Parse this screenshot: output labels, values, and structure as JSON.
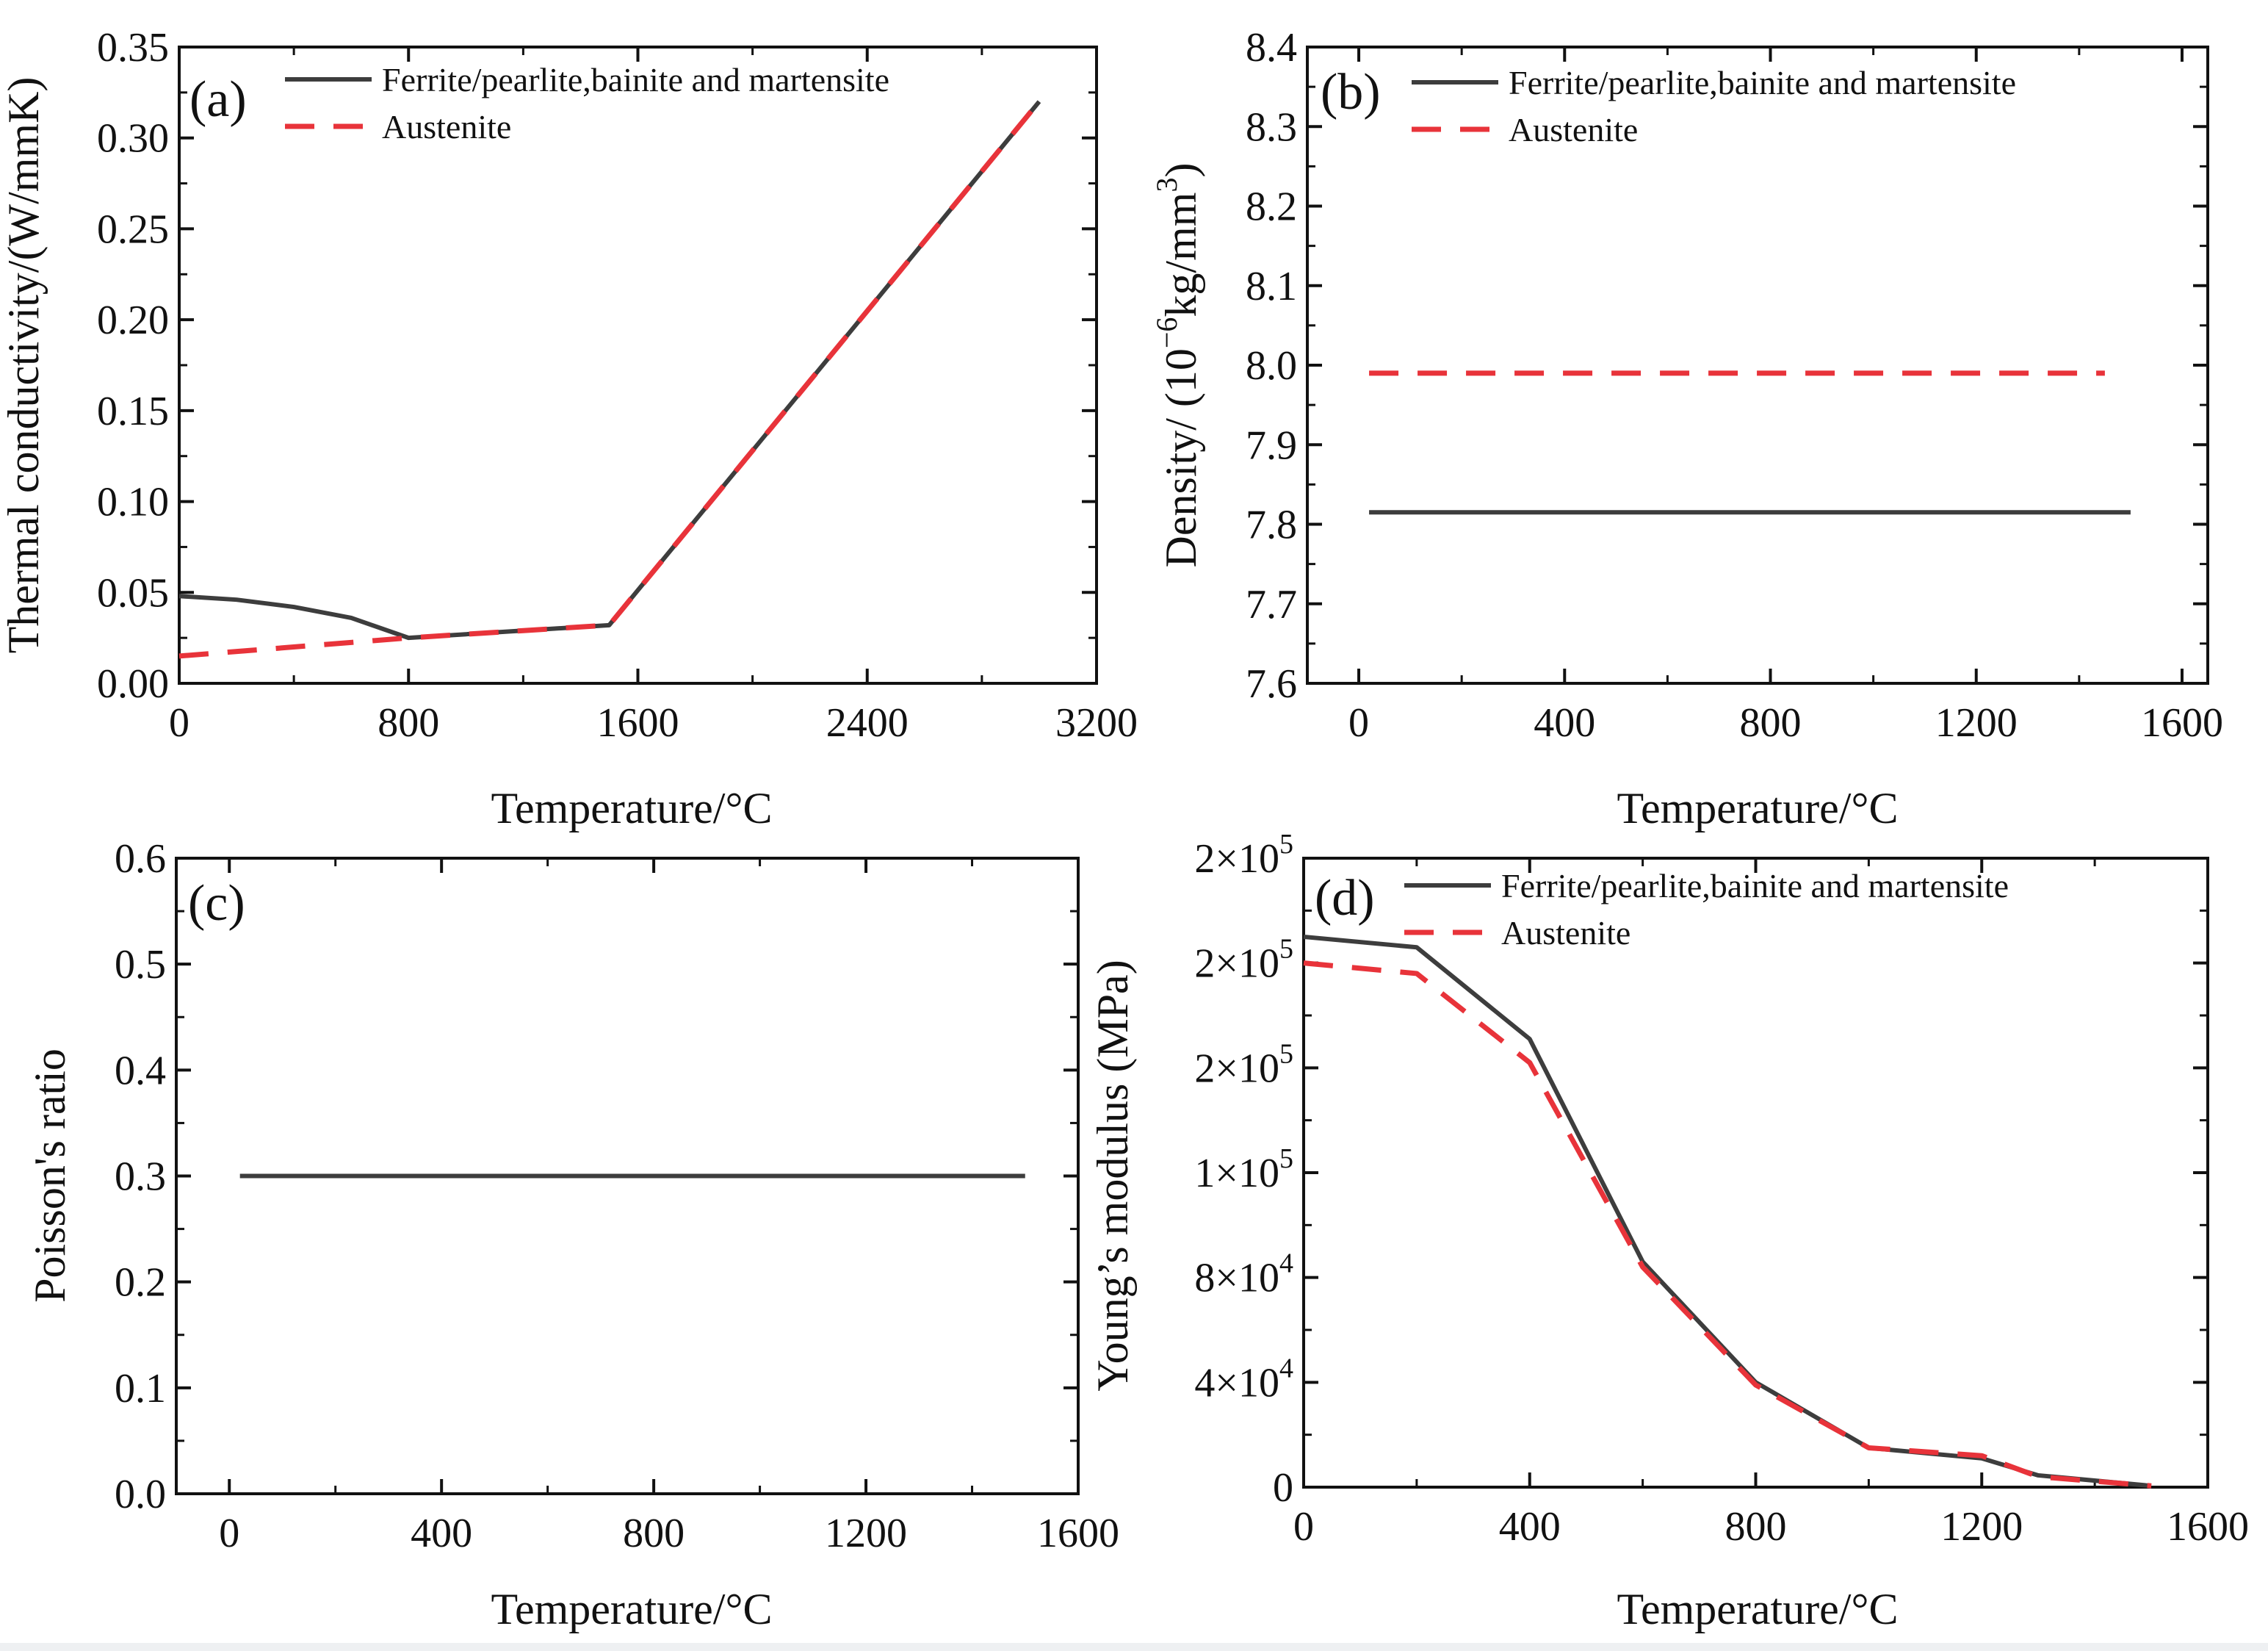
{
  "chart_data": [
    {
      "id": "a",
      "type": "line",
      "panel_label": "(a)",
      "xlabel": "Temperature/°C",
      "ylabel": "Thermal conductivity/(W/mmK)",
      "xlim": [
        0,
        3200
      ],
      "ylim": [
        0,
        0.35
      ],
      "xticks": [
        0,
        800,
        1600,
        2400,
        3200
      ],
      "yticks": [
        0,
        0.05,
        0.1,
        0.15,
        0.2,
        0.25,
        0.3,
        0.35
      ],
      "xtick_labels": [
        "0",
        "800",
        "1600",
        "2400",
        "3200"
      ],
      "ytick_labels": [
        "0.00",
        "0.05",
        "0.10",
        "0.15",
        "0.20",
        "0.25",
        "0.30",
        "0.35"
      ],
      "legend": "top-left",
      "series": [
        {
          "name": "Ferrite/pearlite,bainite and martensite",
          "style": "solid",
          "color": "#3d3d3d",
          "x": [
            0,
            200,
            400,
            600,
            800,
            1000,
            1500,
            3000
          ],
          "y": [
            0.048,
            0.046,
            0.042,
            0.036,
            0.025,
            0.027,
            0.032,
            0.32
          ]
        },
        {
          "name": "Austenite",
          "style": "dashed",
          "color": "#e8333a",
          "x": [
            0,
            800,
            1500,
            3000
          ],
          "y": [
            0.015,
            0.025,
            0.032,
            0.32
          ]
        }
      ]
    },
    {
      "id": "b",
      "type": "line",
      "panel_label": "(b)",
      "xlabel": "Temperature/°C",
      "ylabel_main": "Density/ (10",
      "ylabel_sup": "−6",
      "ylabel_rest": "kg/mm",
      "ylabel_sup2": "3",
      "ylabel_close": ")",
      "xlim": [
        -100,
        1650
      ],
      "ylim": [
        7.6,
        8.4
      ],
      "xticks": [
        0,
        400,
        800,
        1200,
        1600
      ],
      "yticks": [
        7.6,
        7.7,
        7.8,
        7.9,
        8.0,
        8.1,
        8.2,
        8.3,
        8.4
      ],
      "xtick_labels": [
        "0",
        "400",
        "800",
        "1200",
        "1600"
      ],
      "ytick_labels": [
        "7.6",
        "7.7",
        "7.8",
        "7.9",
        "8.0",
        "8.1",
        "8.2",
        "8.3",
        "8.4"
      ],
      "legend": "top-left",
      "series": [
        {
          "name": "Ferrite/pearlite,bainite and martensite",
          "style": "solid",
          "color": "#3d3d3d",
          "x": [
            20,
            1500
          ],
          "y": [
            7.815,
            7.815
          ]
        },
        {
          "name": "Austenite",
          "style": "dashed",
          "color": "#e8333a",
          "x": [
            20,
            1450
          ],
          "y": [
            7.99,
            7.99
          ]
        }
      ]
    },
    {
      "id": "c",
      "type": "line",
      "panel_label": "(c)",
      "xlabel": "Temperature/°C",
      "ylabel": "Poisson's ratio",
      "xlim": [
        -100,
        1600
      ],
      "ylim": [
        0,
        0.6
      ],
      "xticks": [
        0,
        400,
        800,
        1200,
        1600
      ],
      "yticks": [
        0,
        0.1,
        0.2,
        0.3,
        0.4,
        0.5,
        0.6
      ],
      "xtick_labels": [
        "0",
        "400",
        "800",
        "1200",
        "1600"
      ],
      "ytick_labels": [
        "0.0",
        "0.1",
        "0.2",
        "0.3",
        "0.4",
        "0.5",
        "0.6"
      ],
      "series": [
        {
          "name": "Poisson's ratio",
          "style": "solid",
          "color": "#3d3d3d",
          "x": [
            20,
            1500
          ],
          "y": [
            0.3,
            0.3
          ]
        }
      ]
    },
    {
      "id": "d",
      "type": "line",
      "panel_label": "(d)",
      "xlabel": "Temperature/°C",
      "ylabel": "Young’s modulus (MPa)",
      "xlim": [
        0,
        1600
      ],
      "ylim": [
        0,
        240000
      ],
      "xticks": [
        0,
        400,
        800,
        1200,
        1600
      ],
      "yticks": [
        0,
        40000,
        80000,
        120000,
        160000,
        200000,
        240000
      ],
      "xtick_labels": [
        "0",
        "400",
        "800",
        "1200",
        "1600"
      ],
      "ytick_labels": [
        {
          "base": "0",
          "exp": ""
        },
        {
          "base": "4×10",
          "exp": "4"
        },
        {
          "base": "8×10",
          "exp": "4"
        },
        {
          "base": "1×10",
          "exp": "5"
        },
        {
          "base": "2×10",
          "exp": "5"
        },
        {
          "base": "2×10",
          "exp": "5"
        },
        {
          "base": "2×10",
          "exp": "5"
        }
      ],
      "legend": "top-left",
      "series": [
        {
          "name": "Ferrite/pearlite,bainite and martensite",
          "style": "solid",
          "color": "#3d3d3d",
          "x": [
            0,
            200,
            400,
            600,
            800,
            1000,
            1200,
            1300,
            1500
          ],
          "y": [
            210000,
            206000,
            171000,
            86000,
            40000,
            15000,
            11000,
            4500,
            500
          ]
        },
        {
          "name": "Austenite",
          "style": "dashed",
          "color": "#e8333a",
          "x": [
            0,
            200,
            400,
            600,
            800,
            1000,
            1200,
            1300,
            1500
          ],
          "y": [
            200000,
            196000,
            162000,
            84000,
            39000,
            15000,
            12000,
            4000,
            500
          ]
        }
      ]
    }
  ]
}
